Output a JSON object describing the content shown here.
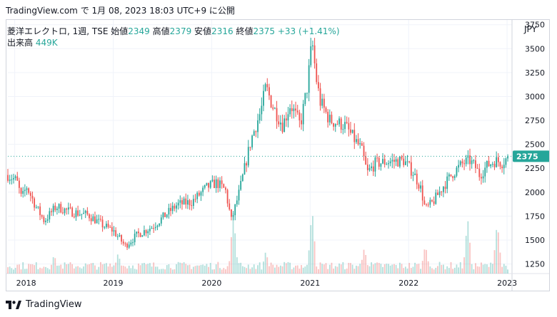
{
  "header": {
    "source": "TradingView.com",
    "published_on": "で 1月 08, 2023 18:03 UTC+9 に公開"
  },
  "legend": {
    "symbol_interval_exchange": "菱洋エレクトロ, 1週, TSE",
    "open_label": "始値",
    "open": "2349",
    "high_label": "高値",
    "high": "2379",
    "low_label": "安値",
    "low": "2316",
    "close_label": "終値",
    "close": "2375",
    "change": "+33 (+1.41%)",
    "volume_label": "出来高",
    "volume": "449K"
  },
  "currency": "JPY",
  "footer": {
    "brand": "TradingView"
  },
  "colors": {
    "up": "#26a69a",
    "down": "#ef5350",
    "last_price_bg": "#26a69a"
  },
  "chart_data": {
    "type": "candlestick",
    "interval": "weekly",
    "y_axis": {
      "min": 1150,
      "max": 3800,
      "ticks": [
        1250,
        1500,
        1750,
        2000,
        2250,
        2500,
        2750,
        3000,
        3250,
        3500,
        3750
      ]
    },
    "x_axis": {
      "labels": [
        "2018",
        "2019",
        "2020",
        "2021",
        "2022",
        "2023"
      ],
      "range": [
        2017.93,
        2023.05
      ]
    },
    "last_price": 2375,
    "price_path": [
      [
        2017.93,
        2180
      ],
      [
        2018.02,
        2120
      ],
      [
        2018.07,
        1930
      ],
      [
        2018.12,
        2060
      ],
      [
        2018.22,
        1840
      ],
      [
        2018.3,
        1700
      ],
      [
        2018.42,
        1850
      ],
      [
        2018.55,
        1800
      ],
      [
        2018.75,
        1760
      ],
      [
        2018.9,
        1650
      ],
      [
        2019.0,
        1600
      ],
      [
        2019.12,
        1440
      ],
      [
        2019.25,
        1560
      ],
      [
        2019.4,
        1640
      ],
      [
        2019.55,
        1780
      ],
      [
        2019.65,
        1870
      ],
      [
        2019.8,
        1900
      ],
      [
        2019.95,
        2050
      ],
      [
        2020.05,
        2100
      ],
      [
        2020.14,
        2020
      ],
      [
        2020.2,
        1700
      ],
      [
        2020.28,
        2000
      ],
      [
        2020.4,
        2550
      ],
      [
        2020.5,
        2850
      ],
      [
        2020.55,
        3100
      ],
      [
        2020.62,
        2900
      ],
      [
        2020.72,
        2700
      ],
      [
        2020.8,
        2920
      ],
      [
        2020.9,
        2700
      ],
      [
        2020.97,
        3100
      ],
      [
        2021.02,
        3580
      ],
      [
        2021.06,
        3200
      ],
      [
        2021.1,
        2950
      ],
      [
        2021.2,
        2750
      ],
      [
        2021.35,
        2700
      ],
      [
        2021.45,
        2550
      ],
      [
        2021.52,
        2450
      ],
      [
        2021.58,
        2200
      ],
      [
        2021.66,
        2300
      ],
      [
        2021.8,
        2320
      ],
      [
        2021.95,
        2330
      ],
      [
        2022.05,
        2200
      ],
      [
        2022.12,
        2050
      ],
      [
        2022.17,
        1820
      ],
      [
        2022.25,
        1900
      ],
      [
        2022.35,
        2060
      ],
      [
        2022.45,
        2200
      ],
      [
        2022.55,
        2300
      ],
      [
        2022.62,
        2330
      ],
      [
        2022.68,
        2260
      ],
      [
        2022.72,
        2180
      ],
      [
        2022.8,
        2280
      ],
      [
        2022.88,
        2330
      ],
      [
        2022.95,
        2310
      ],
      [
        2023.02,
        2375
      ]
    ],
    "volume_spikes": [
      [
        2018.4,
        0.3
      ],
      [
        2019.05,
        0.32
      ],
      [
        2020.22,
        0.95
      ],
      [
        2020.55,
        0.35
      ],
      [
        2021.02,
        1.0
      ],
      [
        2021.55,
        0.4
      ],
      [
        2022.17,
        0.45
      ],
      [
        2022.6,
        0.85
      ],
      [
        2022.9,
        0.8
      ]
    ]
  }
}
